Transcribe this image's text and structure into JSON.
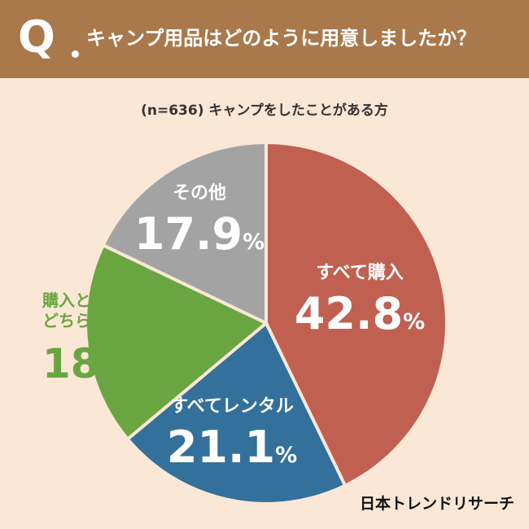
{
  "header": {
    "q_mark": "Q",
    "question": "キャンプ用品はどのように用意しましたか？",
    "bg_color": "#a9784b"
  },
  "subtitle": "(n=636) キャンプをしたことがある方",
  "brand": "日本トレンドリサーチ",
  "chart_data": {
    "type": "pie",
    "title": "キャンプ用品はどのように用意しましたか？",
    "subtitle": "(n=636) キャンプをしたことがある方",
    "unit": "%",
    "start": "12 o'clock, clockwise",
    "slices": [
      {
        "label": "すべて購入",
        "value": 42.8,
        "color": "#c06051",
        "label_color": "#ffffff"
      },
      {
        "label": "すべてレンタル",
        "value": 21.1,
        "color": "#33709b",
        "label_color": "#ffffff"
      },
      {
        "label": "購入とレンタル\nどちらもある",
        "value": 18.2,
        "color": "#69a641",
        "label_color": "#69a641"
      },
      {
        "label": "その他",
        "value": 17.9,
        "color": "#a3a3a3",
        "label_color": "#ffffff"
      }
    ]
  }
}
